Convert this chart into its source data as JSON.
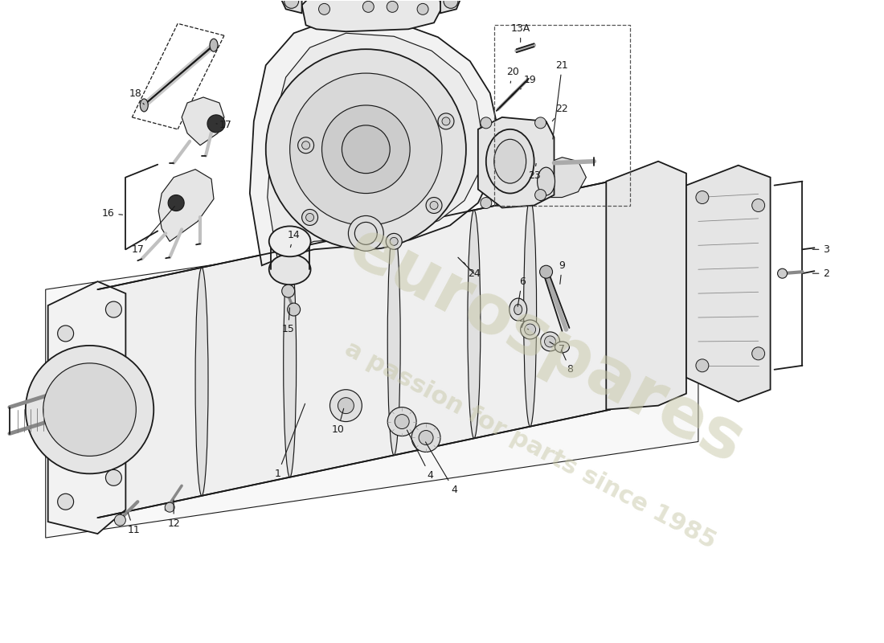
{
  "bg": "#ffffff",
  "lc": "#1a1a1a",
  "wm1": "eurospares",
  "wm2": "a passion for parts since 1985",
  "wm_color": "#c8c8a8",
  "wm_alpha": 0.5,
  "fig_w": 11.0,
  "fig_h": 8.0,
  "dpi": 100
}
